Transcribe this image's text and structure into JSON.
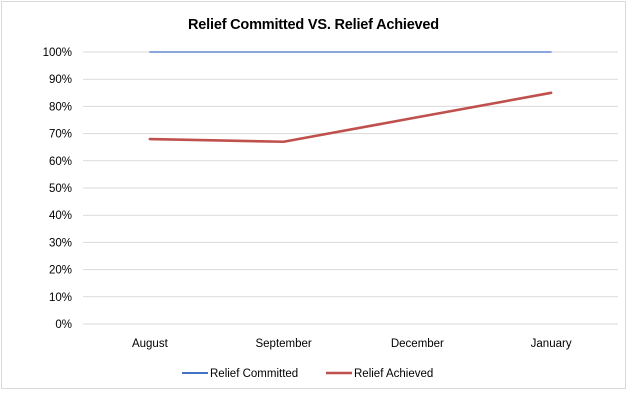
{
  "chart_data": {
    "type": "line",
    "title": "Relief Committed VS. Relief Achieved",
    "xlabel": "",
    "ylabel": "",
    "categories": [
      "August",
      "September",
      "December",
      "January"
    ],
    "ylim": [
      0,
      100
    ],
    "ytick_labels": [
      "0%",
      "10%",
      "20%",
      "30%",
      "40%",
      "50%",
      "60%",
      "70%",
      "80%",
      "90%",
      "100%"
    ],
    "grid": true,
    "legend_position": "bottom",
    "series": [
      {
        "name": "Relief Committed",
        "values": [
          100,
          100,
          100,
          100
        ],
        "color": "#4472c4"
      },
      {
        "name": "Relief Achieved",
        "values": [
          68,
          67,
          76,
          85
        ],
        "color": "#c0504d"
      }
    ]
  }
}
